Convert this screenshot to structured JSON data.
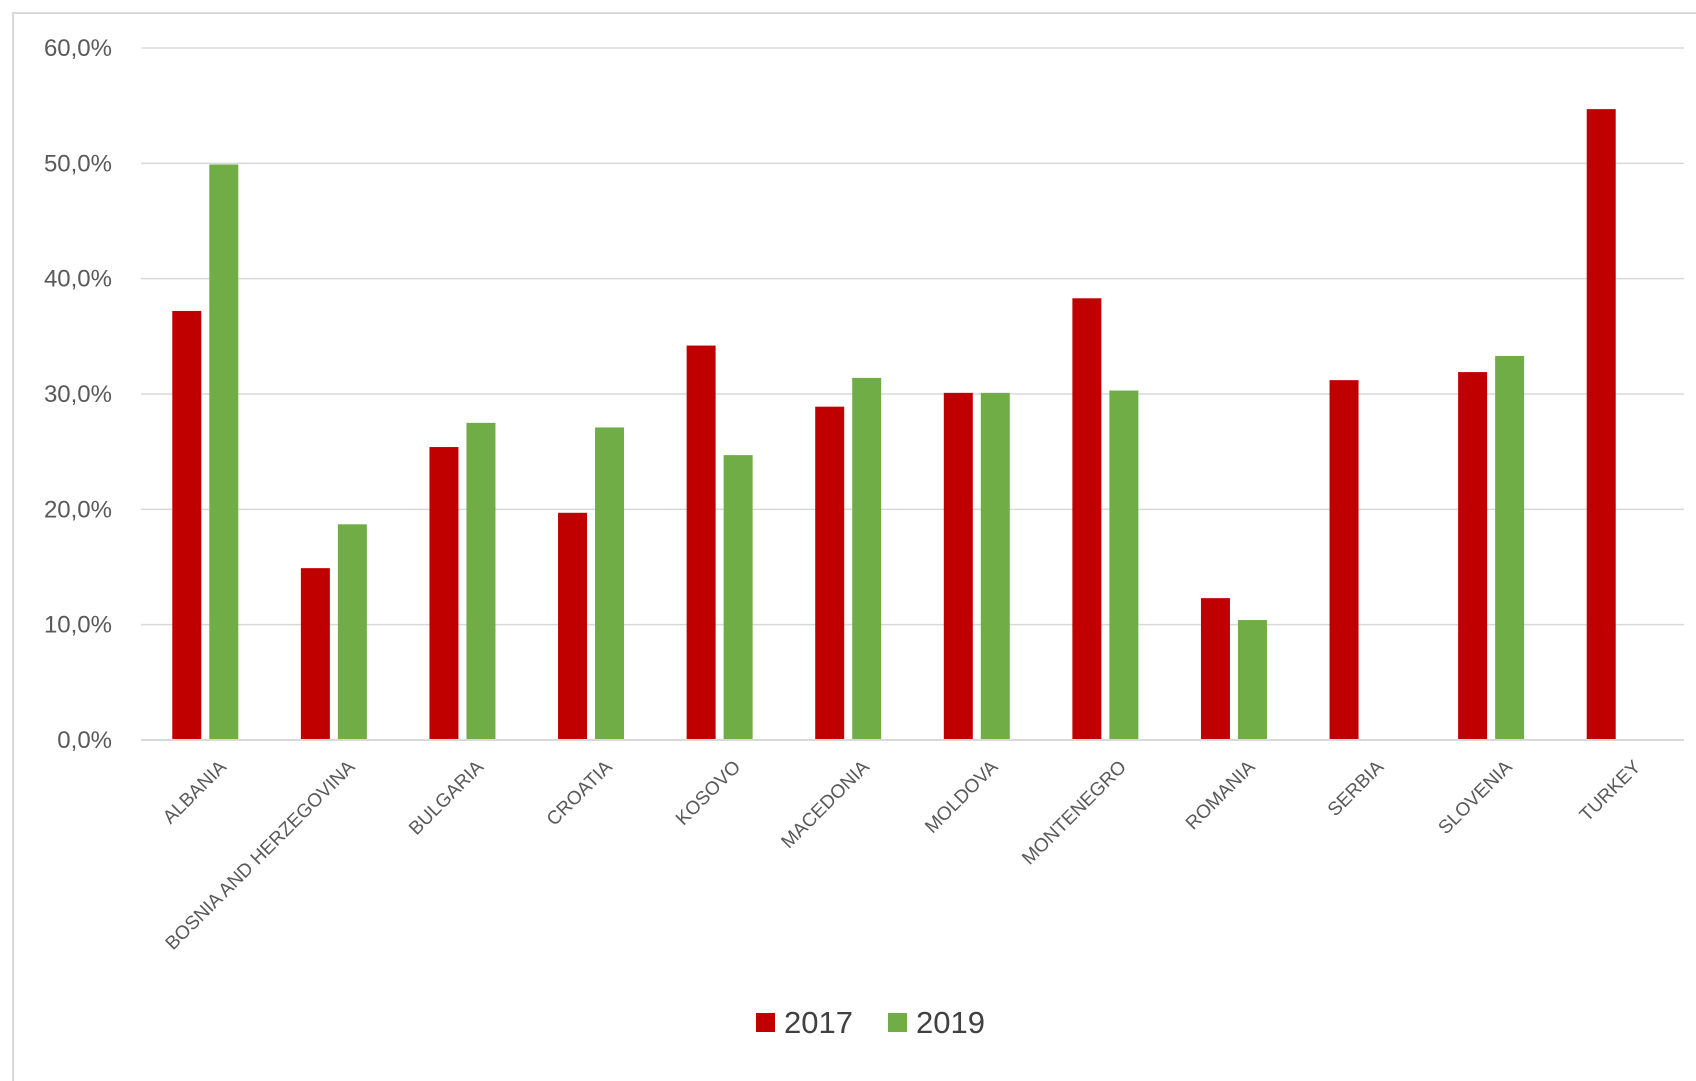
{
  "chart_data": {
    "type": "bar",
    "categories": [
      "ALBANIA",
      "BOSNIA AND HERZEGOVINA",
      "BULGARIA",
      "CROATIA",
      "KOSOVO",
      "MACEDONIA",
      "MOLDOVA",
      "MONTENEGRO",
      "ROMANIA",
      "SERBIA",
      "SLOVENIA",
      "TURKEY"
    ],
    "series": [
      {
        "name": "2017",
        "color": "#c00000",
        "values": [
          37.2,
          14.9,
          25.4,
          19.7,
          34.2,
          28.9,
          30.1,
          38.3,
          12.3,
          31.2,
          31.9,
          54.7
        ]
      },
      {
        "name": "2019",
        "color": "#70ad47",
        "values": [
          49.9,
          18.7,
          27.5,
          27.1,
          24.7,
          31.4,
          30.1,
          30.3,
          10.4,
          null,
          33.3,
          null
        ]
      }
    ],
    "ylim": [
      0,
      60
    ],
    "y_ticks": [
      0,
      10,
      20,
      30,
      40,
      50,
      60
    ],
    "y_tick_labels": [
      "0,0%",
      "10,0%",
      "20,0%",
      "30,0%",
      "40,0%",
      "50,0%",
      "60,0%"
    ],
    "grid": true,
    "legend_position": "bottom"
  }
}
